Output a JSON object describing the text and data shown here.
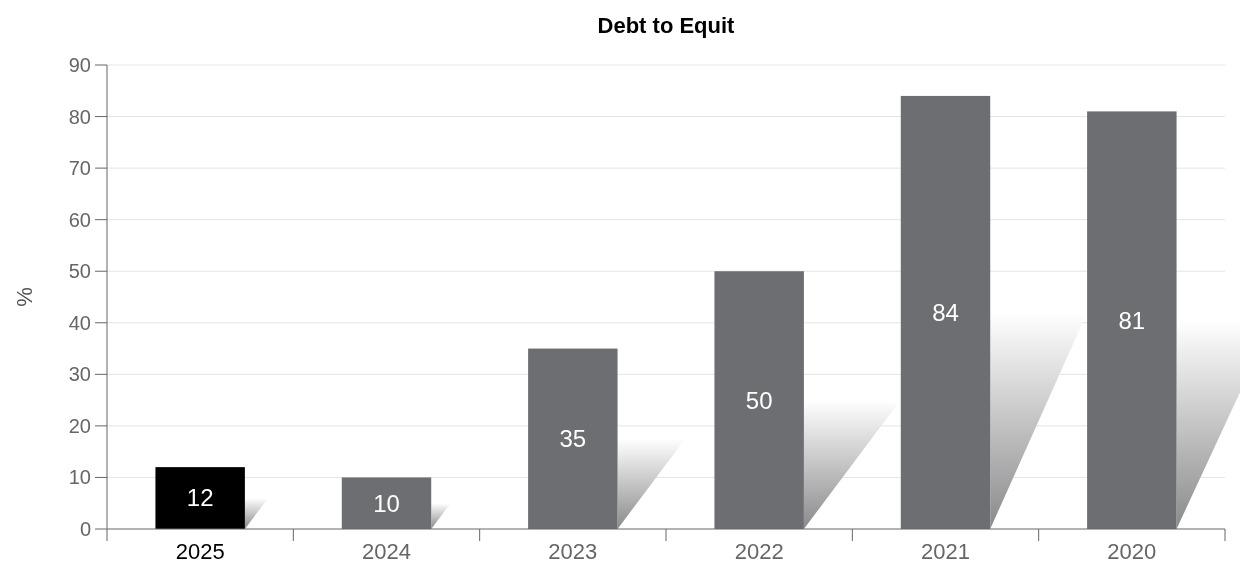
{
  "chart_data": {
    "type": "bar",
    "title": "Debt to Equit",
    "ylabel": "%",
    "categories": [
      "2025",
      "2024",
      "2023",
      "2022",
      "2021",
      "2020"
    ],
    "values": [
      12,
      10,
      35,
      50,
      84,
      81
    ],
    "colors": [
      "#000000",
      "#6d6e72",
      "#6d6e72",
      "#6d6e72",
      "#6d6e72",
      "#6d6e72"
    ],
    "ylim": [
      0,
      90
    ],
    "yticks": [
      0,
      10,
      20,
      30,
      40,
      50,
      60,
      70,
      80,
      90
    ],
    "grid": "y",
    "data_labels": true
  }
}
